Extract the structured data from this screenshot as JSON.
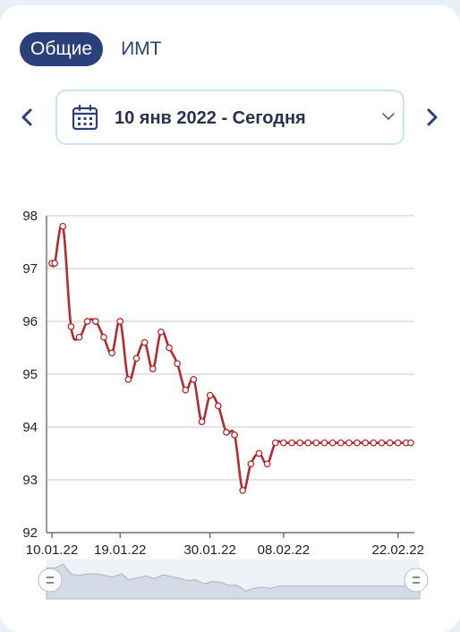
{
  "tabs": {
    "general": "Общие",
    "bmi": "ИМТ"
  },
  "date_range": {
    "label": "10 янв 2022 - Сегодня"
  },
  "icons": {
    "prev": "chevron-left-icon",
    "next": "chevron-right-icon",
    "calendar": "calendar-icon",
    "dropdown": "chevron-down-icon",
    "slider_handle": "drag-handle-icon"
  },
  "colors": {
    "accent": "#2b3f7a",
    "series": "#b52a2f",
    "range_border": "#c7e4ef",
    "navigator": "#d4dbe6"
  },
  "chart_data": {
    "type": "line",
    "title": "",
    "xlabel": "",
    "ylabel": "",
    "ylim": [
      92,
      98
    ],
    "grid": true,
    "yticks": [
      "92",
      "93",
      "94",
      "95",
      "96",
      "97",
      "98"
    ],
    "xticks": [
      {
        "label": "10.01.22",
        "x": 0
      },
      {
        "label": "19.01.22",
        "x": 9
      },
      {
        "label": "30.01.22",
        "x": 20
      },
      {
        "label": "08.02.22",
        "x": 29
      },
      {
        "label": "22.02.22",
        "x": 43
      }
    ],
    "series": [
      {
        "x": [
          0,
          1,
          2,
          3,
          4,
          5,
          6,
          7,
          8,
          9,
          10,
          11,
          12,
          13,
          14,
          15,
          16,
          17,
          18,
          19,
          20,
          21,
          22,
          23,
          24,
          25,
          26,
          27,
          28,
          29,
          30,
          31,
          32,
          33,
          34,
          35,
          36,
          37,
          38,
          39,
          40,
          41,
          42,
          43,
          44,
          45
        ],
        "y": [
          97.1,
          97.1,
          97.8,
          95.9,
          95.7,
          96.0,
          96.0,
          95.7,
          95.4,
          96.0,
          94.9,
          95.3,
          95.6,
          95.1,
          95.8,
          95.5,
          95.2,
          94.7,
          94.9,
          94.1,
          94.6,
          94.4,
          93.9,
          93.85,
          92.8,
          93.3,
          93.5,
          93.3,
          93.7,
          93.7,
          93.7,
          93.7,
          93.7,
          93.7,
          93.7,
          93.7,
          93.7,
          93.7,
          93.7,
          93.7,
          93.7,
          93.7,
          93.7,
          93.7,
          93.7,
          93.7
        ]
      }
    ]
  }
}
